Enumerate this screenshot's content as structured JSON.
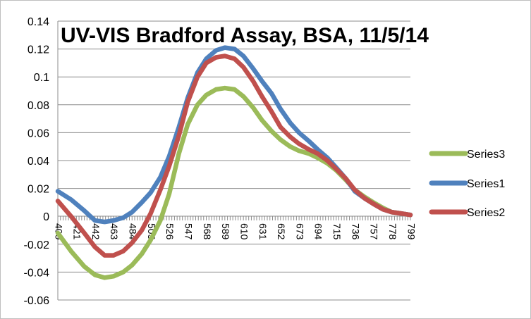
{
  "chart_data": {
    "type": "line",
    "title": "UV-VIS Bradford Assay, BSA, 11/5/14",
    "xlabel": "",
    "ylabel": "",
    "ylim": [
      -0.06,
      0.14
    ],
    "y_ticks": [
      "-0.06",
      "-0.04",
      "-0.02",
      "0",
      "0.02",
      "0.04",
      "0.06",
      "0.08",
      "0.1",
      "0.12",
      "0.14"
    ],
    "x_range": [
      400,
      799
    ],
    "x_tick_labels": [
      "400",
      "421",
      "442",
      "463",
      "484",
      "505",
      "526",
      "547",
      "568",
      "589",
      "610",
      "631",
      "652",
      "673",
      "694",
      "715",
      "736",
      "757",
      "778",
      "799"
    ],
    "grid": "horizontal",
    "legend_position": "right",
    "legend_order": [
      "Series3",
      "Series1",
      "Series2"
    ],
    "series": [
      {
        "name": "Series1",
        "color": "#4f81bd",
        "x": [
          400,
          415,
          430,
          442,
          453,
          463,
          474,
          484,
          495,
          505,
          516,
          526,
          537,
          547,
          558,
          568,
          579,
          589,
          600,
          610,
          621,
          631,
          642,
          652,
          663,
          673,
          684,
          694,
          705,
          715,
          726,
          736,
          747,
          757,
          768,
          778,
          789,
          799
        ],
        "y": [
          0.018,
          0.012,
          0.004,
          -0.003,
          -0.004,
          -0.003,
          -0.001,
          0.003,
          0.01,
          0.017,
          0.028,
          0.043,
          0.064,
          0.085,
          0.103,
          0.113,
          0.119,
          0.121,
          0.12,
          0.115,
          0.106,
          0.097,
          0.088,
          0.077,
          0.067,
          0.06,
          0.054,
          0.048,
          0.042,
          0.035,
          0.027,
          0.018,
          0.013,
          0.009,
          0.005,
          0.003,
          0.002,
          0.001
        ]
      },
      {
        "name": "Series2",
        "color": "#c0504d",
        "x": [
          400,
          415,
          430,
          442,
          453,
          463,
          474,
          484,
          495,
          505,
          516,
          526,
          537,
          547,
          558,
          568,
          579,
          589,
          600,
          610,
          621,
          631,
          642,
          652,
          663,
          673,
          684,
          694,
          705,
          715,
          726,
          736,
          747,
          757,
          768,
          778,
          789,
          799
        ],
        "y": [
          0.011,
          0.0,
          -0.012,
          -0.022,
          -0.028,
          -0.028,
          -0.025,
          -0.019,
          -0.01,
          0.002,
          0.019,
          0.036,
          0.058,
          0.082,
          0.1,
          0.11,
          0.114,
          0.115,
          0.113,
          0.107,
          0.097,
          0.086,
          0.075,
          0.064,
          0.057,
          0.052,
          0.048,
          0.045,
          0.04,
          0.034,
          0.027,
          0.019,
          0.013,
          0.009,
          0.005,
          0.003,
          0.002,
          0.001
        ]
      },
      {
        "name": "Series3",
        "color": "#9bbb59",
        "x": [
          400,
          415,
          430,
          442,
          453,
          463,
          474,
          484,
          495,
          505,
          516,
          526,
          537,
          547,
          558,
          568,
          579,
          589,
          600,
          610,
          621,
          631,
          642,
          652,
          663,
          673,
          684,
          694,
          705,
          715,
          726,
          736,
          747,
          757,
          768,
          778,
          789,
          799
        ],
        "y": [
          -0.012,
          -0.025,
          -0.036,
          -0.042,
          -0.044,
          -0.043,
          -0.04,
          -0.035,
          -0.027,
          -0.017,
          -0.003,
          0.016,
          0.045,
          0.066,
          0.08,
          0.087,
          0.091,
          0.092,
          0.091,
          0.086,
          0.078,
          0.069,
          0.061,
          0.055,
          0.05,
          0.047,
          0.045,
          0.042,
          0.038,
          0.033,
          0.026,
          0.019,
          0.014,
          0.01,
          0.006,
          0.003,
          0.002,
          0.001
        ]
      }
    ]
  }
}
